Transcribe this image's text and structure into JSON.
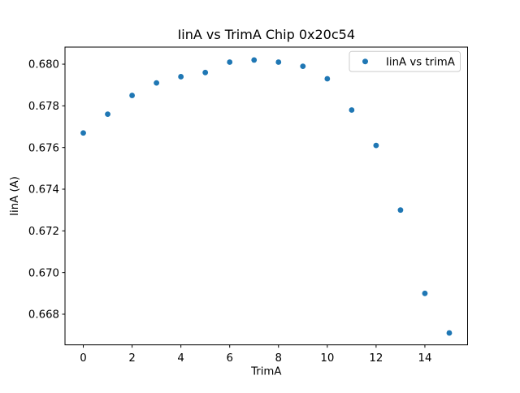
{
  "chart_data": {
    "type": "scatter",
    "title": "IinA vs TrimA Chip 0x20c54",
    "xlabel": "TrimA",
    "ylabel": "IinA (A)",
    "legend": {
      "label": "IinA vs trimA",
      "position": "upper right"
    },
    "marker_color": "#1f77b4",
    "legend_border_color": "#cccccc",
    "spine_color": "#000000",
    "x": [
      0,
      1,
      2,
      3,
      4,
      5,
      6,
      7,
      8,
      9,
      10,
      11,
      12,
      13,
      14,
      15
    ],
    "y": [
      0.6767,
      0.6776,
      0.6785,
      0.6791,
      0.6794,
      0.6796,
      0.6801,
      0.6802,
      0.6801,
      0.6799,
      0.6793,
      0.6778,
      0.6761,
      0.673,
      0.669,
      0.6671
    ],
    "xlim": [
      -0.75,
      15.75
    ],
    "ylim": [
      0.66653,
      0.68082
    ],
    "xticks": [
      0,
      2,
      4,
      6,
      8,
      10,
      12,
      14
    ],
    "yticks": [
      0.668,
      0.67,
      0.672,
      0.674,
      0.676,
      0.678,
      0.68
    ],
    "ytick_decimals": 3,
    "grid": false
  }
}
